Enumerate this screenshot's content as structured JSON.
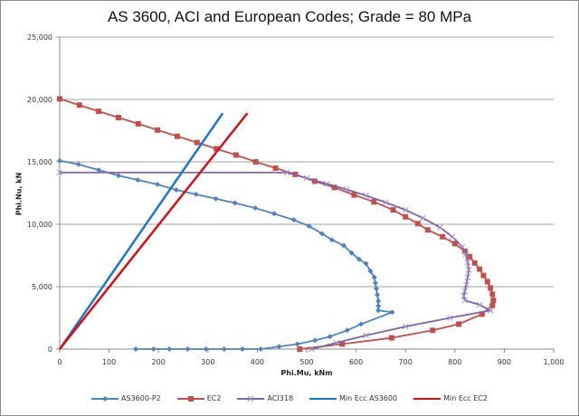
{
  "chart_data": {
    "type": "line",
    "title": "AS 3600, ACI and European Codes; Grade = 80 MPa",
    "xlabel": "Phi.Mu, kNm",
    "ylabel": "Phi.Nu, kN",
    "xlim": [
      0,
      1000
    ],
    "ylim": [
      0,
      25000
    ],
    "xticks": [
      "0",
      "100",
      "200",
      "300",
      "400",
      "500",
      "600",
      "700",
      "800",
      "900",
      "1,000"
    ],
    "yticks": [
      "0",
      "5,000",
      "10,000",
      "15,000",
      "20,000",
      "25,000"
    ],
    "grid": "horizontal",
    "legend_position": "bottom",
    "series": [
      {
        "name": "AS3600-P2",
        "color": "#4f81bd",
        "marker": "diamond",
        "x": [
          0,
          38,
          79,
          119,
          158,
          198,
          236,
          276,
          316,
          355,
          396,
          434,
          474,
          505,
          531,
          551,
          575,
          591,
          606,
          620,
          629,
          637,
          639,
          641,
          643,
          645,
          645,
          645,
          673,
          610,
          582,
          547,
          517,
          481,
          444,
          407,
          370,
          333,
          296,
          259,
          222,
          190,
          154
        ],
        "y": [
          15100,
          14800,
          14350,
          13900,
          13550,
          13200,
          12750,
          12400,
          12050,
          11700,
          11300,
          10850,
          10350,
          9850,
          9250,
          8750,
          8300,
          7700,
          7200,
          6850,
          6250,
          5750,
          5300,
          4850,
          4350,
          3850,
          3450,
          3100,
          2950,
          2000,
          1500,
          1000,
          700,
          400,
          200,
          0,
          0,
          0,
          0,
          0,
          0,
          0,
          0
        ]
      },
      {
        "name": "EC2",
        "color": "#c0504d",
        "marker": "square",
        "x": [
          0,
          40,
          79,
          119,
          159,
          198,
          238,
          278,
          317,
          357,
          397,
          437,
          477,
          516,
          556,
          596,
          636,
          675,
          700,
          725,
          745,
          775,
          800,
          820,
          830,
          840,
          850,
          858,
          866,
          872,
          876,
          878,
          876,
          855,
          808,
          755,
          672,
          572,
          486
        ],
        "y": [
          20050,
          19550,
          19050,
          18550,
          18050,
          17550,
          17050,
          16550,
          16050,
          15550,
          15000,
          14500,
          14000,
          13450,
          12950,
          12350,
          11800,
          11150,
          10600,
          10050,
          9550,
          9000,
          8450,
          7850,
          7400,
          6900,
          6400,
          5900,
          5400,
          4900,
          4400,
          3900,
          3500,
          2800,
          2000,
          1500,
          900,
          400,
          0
        ]
      },
      {
        "name": "ACI318",
        "color": "#8064a2",
        "marker": "x",
        "x": [
          0,
          460,
          500,
          540,
          580,
          620,
          660,
          700,
          735,
          770,
          795,
          815,
          822,
          826,
          828,
          826,
          823,
          820,
          818,
          820,
          850,
          872,
          790,
          700,
          620,
          560,
          510
        ],
        "y": [
          14150,
          14150,
          13700,
          13250,
          12800,
          12300,
          11750,
          11150,
          10500,
          9750,
          9000,
          8200,
          7600,
          6950,
          6350,
          5750,
          5150,
          4650,
          4250,
          3900,
          3550,
          3100,
          2500,
          1800,
          1100,
          500,
          0
        ]
      },
      {
        "name": "Min Ecc AS3600",
        "color": "#1f77c4",
        "marker": "none",
        "x": [
          0,
          330
        ],
        "y": [
          0,
          18900
        ]
      },
      {
        "name": "Min Ecc EC2",
        "color": "#d0101a",
        "marker": "none",
        "x": [
          0,
          380
        ],
        "y": [
          0,
          18900
        ]
      }
    ]
  }
}
